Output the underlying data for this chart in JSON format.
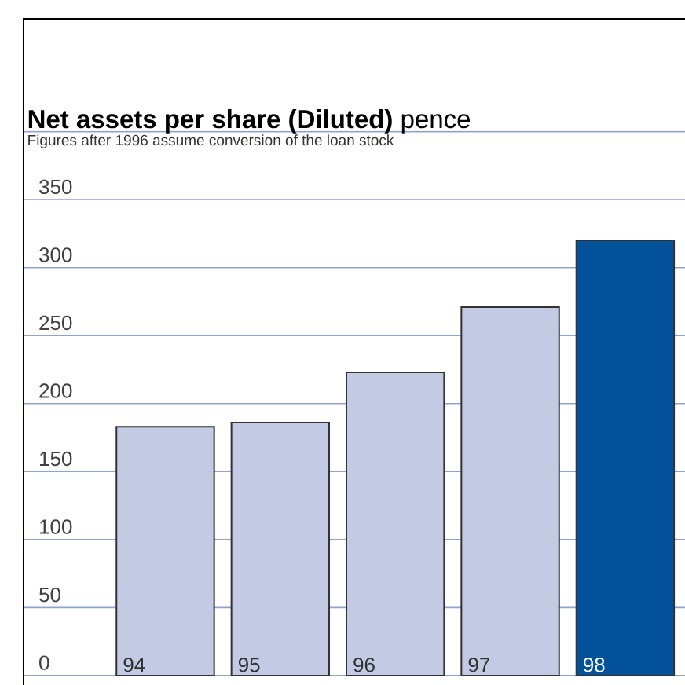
{
  "chart_data": {
    "type": "bar",
    "title": "**Net assets per share (Diluted)** pence",
    "subtitle": "Figures after 1996 assume conversion of the loan stock",
    "categories": [
      "94",
      "95",
      "96",
      "97",
      "98"
    ],
    "values": [
      183,
      186,
      223,
      271,
      320
    ],
    "colors": [
      "#c3cae3",
      "#c3cae3",
      "#c3cae3",
      "#c3cae3",
      "#03529b"
    ],
    "ylim": [
      -7,
      483
    ],
    "yticks": [
      0,
      50,
      100,
      150,
      200,
      250,
      300,
      350,
      {
        "value": 400,
        "label": null
      }
    ],
    "grid": "y"
  }
}
